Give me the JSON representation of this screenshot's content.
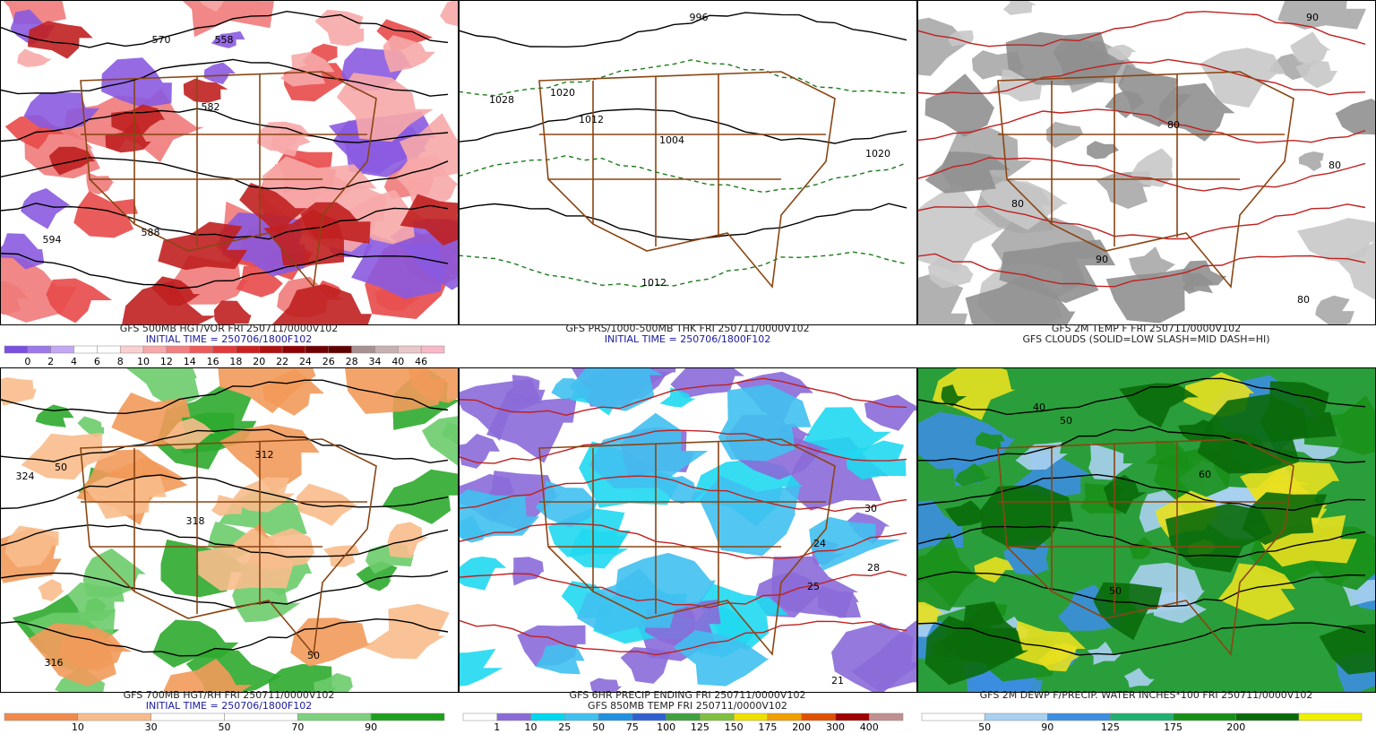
{
  "panels": [
    {
      "titles": [
        "GFS 500MB HGT/VOR FRI 250711/0000V102",
        "INITIAL TIME = 250706/1800F102"
      ],
      "map_labels": [
        "570",
        "558",
        "582",
        "594",
        "588"
      ],
      "colorbar": {
        "colors": [
          "#7b4fe0",
          "#9c78ea",
          "#c2a8f2",
          "#ffffff",
          "#ffffff",
          "#fbd0d0",
          "#f7a9a9",
          "#f28080",
          "#ee5a5a",
          "#e23a3a",
          "#cc2020",
          "#b01010",
          "#900000",
          "#700000",
          "#600000",
          "#a89090",
          "#c8b0b0",
          "#e8c8c8",
          "#f8b8c8"
        ],
        "labels": [
          "0",
          "2",
          "4",
          "6",
          "8",
          "10",
          "12",
          "14",
          "16",
          "18",
          "20",
          "22",
          "24",
          "26",
          "28",
          "34",
          "40",
          "46"
        ]
      }
    },
    {
      "titles": [
        "GFS PRS/1000-500MB THK FRI 250711/0000V102",
        "INITIAL TIME = 250706/1800F102"
      ],
      "map_labels": [
        "1028",
        "1020",
        "1012",
        "1004",
        "1012",
        "1020",
        "996"
      ]
    },
    {
      "titles": [
        "GFS 2M TEMP F FRI 250711/0000V102",
        "GFS CLOUDS (SOLID=LOW SLASH=MID DASH=HI)"
      ],
      "map_labels": [
        "80",
        "80",
        "90",
        "80",
        "80",
        "90"
      ]
    },
    {
      "titles": [
        "GFS 700MB HGT/RH FRI 250711/0000V102",
        "INITIAL TIME = 250706/1800F102"
      ],
      "map_labels": [
        "324",
        "312",
        "318",
        "50",
        "50",
        "316"
      ],
      "colorbar": {
        "colors": [
          "#f08a4b",
          "#f8bc8c",
          "#ffffff",
          "#ffffff",
          "#7ed07e",
          "#1ea01e"
        ],
        "labels": [
          "10",
          "30",
          "50",
          "70",
          "90"
        ]
      }
    },
    {
      "titles": [
        "GFS 6HR PRECIP ENDING FRI 250711/0000V102",
        "GFS 850MB TEMP FRI 250711/0000V102"
      ],
      "map_labels": [
        "30",
        "28",
        "24",
        "25",
        "21"
      ],
      "colorbar": {
        "colors": [
          "#ffffff",
          "#8a6ad8",
          "#00d8f0",
          "#40c0f0",
          "#2090e0",
          "#3060d0",
          "#40a040",
          "#80c040",
          "#f0e000",
          "#f0a000",
          "#e05000",
          "#a00000",
          "#c09090"
        ],
        "labels": [
          "1",
          "10",
          "25",
          "50",
          "75",
          "100",
          "125",
          "150",
          "175",
          "200",
          "300",
          "400"
        ]
      }
    },
    {
      "titles": [
        "GFS 2M DEWP F/PRECIP. WATER INCHES*100 FRI 250711/0000V102"
      ],
      "map_labels": [
        "50",
        "40",
        "50",
        "60"
      ],
      "colorbar": {
        "colors": [
          "#ffffff",
          "#a8d0f0",
          "#3c8ee0",
          "#20b070",
          "#189018",
          "#0a6a0a",
          "#f0f000"
        ],
        "labels": [
          "50",
          "90",
          "125",
          "175",
          "200"
        ]
      }
    }
  ]
}
